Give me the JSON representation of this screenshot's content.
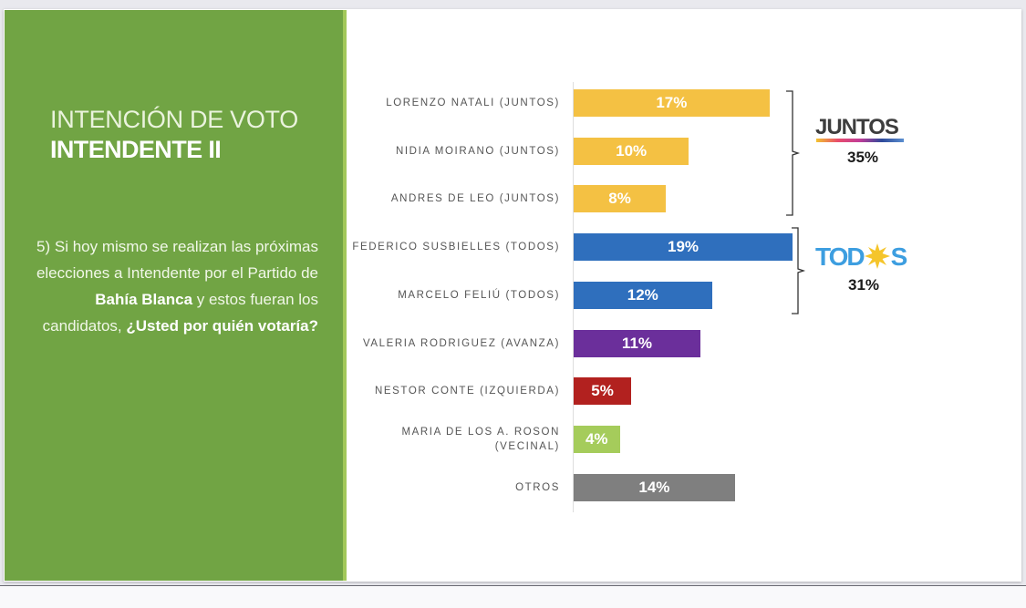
{
  "slide": {
    "title_line1": "INTENCIÓN DE VOTO",
    "title_line2": "INTENDENTE II",
    "question_parts": {
      "p1": "5) Si hoy mismo se realizan las próximas elecciones a Intendente por el Partido de ",
      "bold1": "Bahía Blanca",
      "p2": " y estos fueran los candidatos, ",
      "bold2": "¿Usted por quién votaría?"
    }
  },
  "colors": {
    "panel_green": "#71a444",
    "juntos": "#f4c143",
    "todos": "#2f6fbd",
    "avanza": "#6b2f9b",
    "izquierda": "#b2211f",
    "vecinal": "#a5cc5b",
    "otros": "#7f7f7f"
  },
  "chart_data": {
    "type": "bar",
    "orientation": "horizontal",
    "title": "INTENCIÓN DE VOTO INTENDENTE II",
    "xlabel": "",
    "ylabel": "",
    "xlim": [
      0,
      19
    ],
    "grid": false,
    "categories": [
      "LORENZO NATALI (JUNTOS)",
      "NIDIA MOIRANO (JUNTOS)",
      "ANDRES DE LEO (JUNTOS)",
      "FEDERICO SUSBIELLES (TODOS)",
      "MARCELO FELIÚ (TODOS)",
      "VALERIA RODRIGUEZ (AVANZA)",
      "NESTOR CONTE (IZQUIERDA)",
      "MARIA DE LOS A. ROSON (VECINAL)",
      "OTROS"
    ],
    "label_lines": [
      [
        "LORENZO NATALI (JUNTOS)"
      ],
      [
        "NIDIA MOIRANO (JUNTOS)"
      ],
      [
        "ANDRES DE LEO (JUNTOS)"
      ],
      [
        "FEDERICO SUSBIELLES (TODOS)"
      ],
      [
        "MARCELO FELIÚ (TODOS)"
      ],
      [
        "VALERIA RODRIGUEZ (AVANZA)"
      ],
      [
        "NESTOR CONTE (IZQUIERDA)"
      ],
      [
        "MARIA DE LOS A. ROSON",
        "(VECINAL)"
      ],
      [
        "OTROS"
      ]
    ],
    "values": [
      17,
      10,
      8,
      19,
      12,
      11,
      5,
      4,
      14
    ],
    "data_labels": [
      "17%",
      "10%",
      "8%",
      "19%",
      "12%",
      "11%",
      "5%",
      "4%",
      "14%"
    ],
    "bar_groups": [
      "juntos",
      "juntos",
      "juntos",
      "todos",
      "todos",
      "avanza",
      "izquierda",
      "vecinal",
      "otros"
    ],
    "annotations": [
      {
        "group": "JUNTOS",
        "total": 35,
        "total_label": "35%",
        "spans": [
          0,
          2
        ]
      },
      {
        "group": "TODOS",
        "total": 31,
        "total_label": "31%",
        "spans": [
          3,
          4
        ]
      }
    ]
  },
  "logos": {
    "juntos_text": "JUNTOS",
    "todos_text_left": "TOD",
    "todos_text_right": "S",
    "todos_full": "TODOS"
  }
}
